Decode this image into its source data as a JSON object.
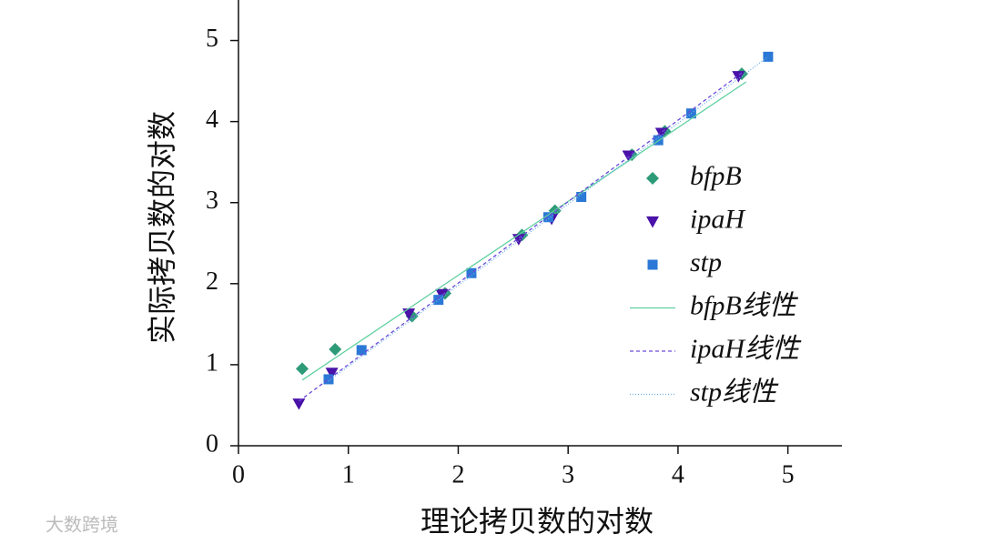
{
  "chart_data": {
    "type": "scatter",
    "xlabel": "理论拷贝数的对数",
    "ylabel": "实际拷贝数的对数",
    "xlim": [
      0,
      5.5
    ],
    "xticks": [
      0,
      1,
      2,
      3,
      4,
      5
    ],
    "ylim": [
      0,
      5.5
    ],
    "yticks": [
      0,
      1,
      2,
      3,
      4,
      5
    ],
    "legend": "right",
    "series": [
      {
        "name": "bfpB",
        "color": "#2e9b78",
        "marker": "diamond",
        "x": [
          0.58,
          0.88,
          1.58,
          1.88,
          2.58,
          2.88,
          3.58,
          3.88,
          4.58
        ],
        "values": [
          0.95,
          1.19,
          1.6,
          1.88,
          2.6,
          2.9,
          3.59,
          3.88,
          4.59
        ]
      },
      {
        "name": "ipaH",
        "color": "#4a12a8",
        "marker": "triangle-down",
        "x": [
          0.55,
          0.85,
          1.55,
          1.85,
          2.55,
          2.85,
          3.55,
          3.85,
          4.55
        ],
        "values": [
          0.52,
          0.9,
          1.63,
          1.87,
          2.55,
          2.8,
          3.58,
          3.86,
          4.56
        ]
      },
      {
        "name": "stp",
        "color": "#2b78d6",
        "marker": "square",
        "x": [
          0.82,
          1.12,
          1.82,
          2.12,
          2.82,
          3.12,
          3.82,
          4.12,
          4.82
        ],
        "values": [
          0.82,
          1.18,
          1.8,
          2.13,
          2.82,
          3.07,
          3.77,
          4.1,
          4.8
        ]
      },
      {
        "name": "bfpB线性",
        "color": "#5fd0a0",
        "type": "line",
        "dash": "none",
        "x": [
          0.58,
          4.62
        ],
        "values": [
          0.81,
          4.49
        ]
      },
      {
        "name": "ipaH线性",
        "color": "#6a4ad8",
        "type": "line",
        "dash": "4 3",
        "x": [
          0.55,
          4.58
        ],
        "values": [
          0.55,
          4.6
        ]
      },
      {
        "name": "stp线性",
        "color": "#6ab0e8",
        "type": "line",
        "dash": "1 2",
        "x": [
          0.82,
          4.82
        ],
        "values": [
          0.8,
          4.8
        ]
      }
    ]
  },
  "watermark": "大数跨境"
}
